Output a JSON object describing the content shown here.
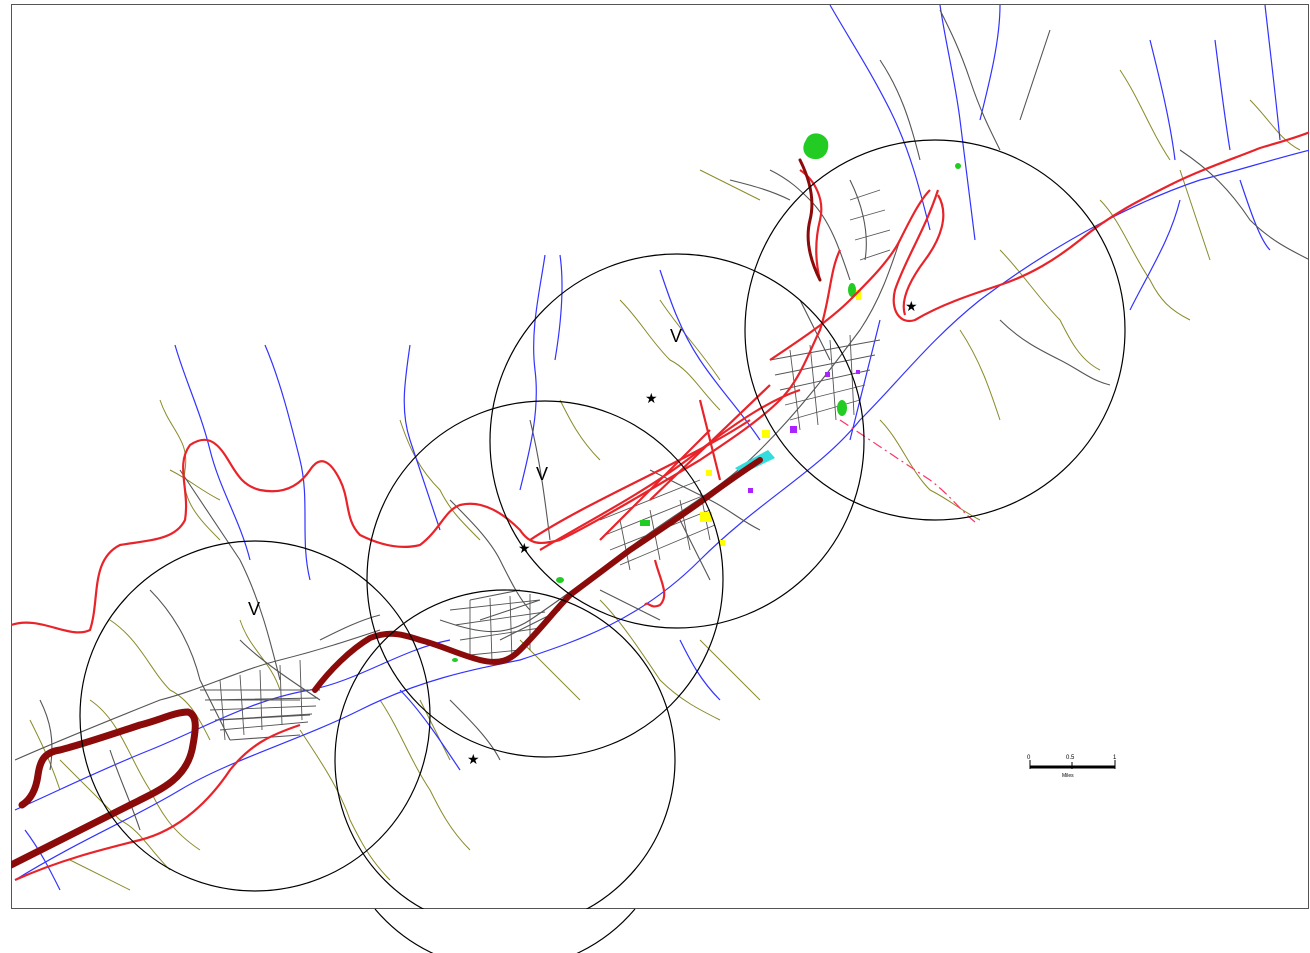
{
  "map": {
    "colors": {
      "background": "#ffffff",
      "rivers": "#3333ff",
      "contours": "#8a8a2a",
      "roads": "#555555",
      "main_road": "#e8242a",
      "highway": "#8b0a0a",
      "service_circle": "#000000",
      "park": "#22cc22",
      "zone_yellow": "#ffff00",
      "zone_cyan": "#33dddd",
      "zone_purple": "#aa22ff",
      "boundary_dash": "#ff3366"
    },
    "markers": {
      "v_label": "V",
      "star_symbol": "★"
    },
    "scale_bar": {
      "start": "0",
      "mid": "0.5",
      "end": "1",
      "unit": "Miles"
    }
  }
}
